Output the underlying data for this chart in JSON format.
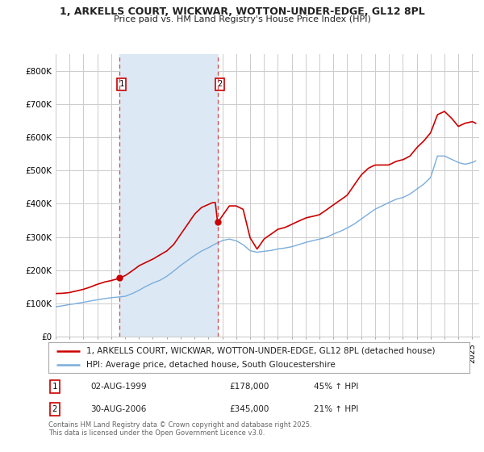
{
  "title": "1, ARKELLS COURT, WICKWAR, WOTTON-UNDER-EDGE, GL12 8PL",
  "subtitle": "Price paid vs. HM Land Registry's House Price Index (HPI)",
  "xlim_start": 1995.0,
  "xlim_end": 2025.5,
  "ylim": [
    0,
    850000
  ],
  "yticks": [
    0,
    100000,
    200000,
    300000,
    400000,
    500000,
    600000,
    700000,
    800000
  ],
  "ytick_labels": [
    "£0",
    "£100K",
    "£200K",
    "£300K",
    "£400K",
    "£500K",
    "£600K",
    "£700K",
    "£800K"
  ],
  "xticks": [
    1995,
    1996,
    1997,
    1998,
    1999,
    2000,
    2001,
    2002,
    2003,
    2004,
    2005,
    2006,
    2007,
    2008,
    2009,
    2010,
    2011,
    2012,
    2013,
    2014,
    2015,
    2016,
    2017,
    2018,
    2019,
    2020,
    2021,
    2022,
    2023,
    2024,
    2025
  ],
  "red_line_label": "1, ARKELLS COURT, WICKWAR, WOTTON-UNDER-EDGE, GL12 8PL (detached house)",
  "blue_line_label": "HPI: Average price, detached house, South Gloucestershire",
  "transaction1_label": "1",
  "transaction1_date": "02-AUG-1999",
  "transaction1_price": "£178,000",
  "transaction1_hpi": "45% ↑ HPI",
  "transaction1_year": 1999.58,
  "transaction1_value": 178000,
  "transaction2_label": "2",
  "transaction2_date": "30-AUG-2006",
  "transaction2_price": "£345,000",
  "transaction2_hpi": "21% ↑ HPI",
  "transaction2_year": 2006.66,
  "transaction2_value": 345000,
  "red_color": "#cc0000",
  "blue_color": "#7aaddb",
  "shade_color": "#dce9f5",
  "grid_color": "#cccccc",
  "background_color": "#ffffff",
  "vline_color": "#dd4444",
  "marker_color": "#cc0000",
  "footer_text": "Contains HM Land Registry data © Crown copyright and database right 2025.\nThis data is licensed under the Open Government Licence v3.0."
}
